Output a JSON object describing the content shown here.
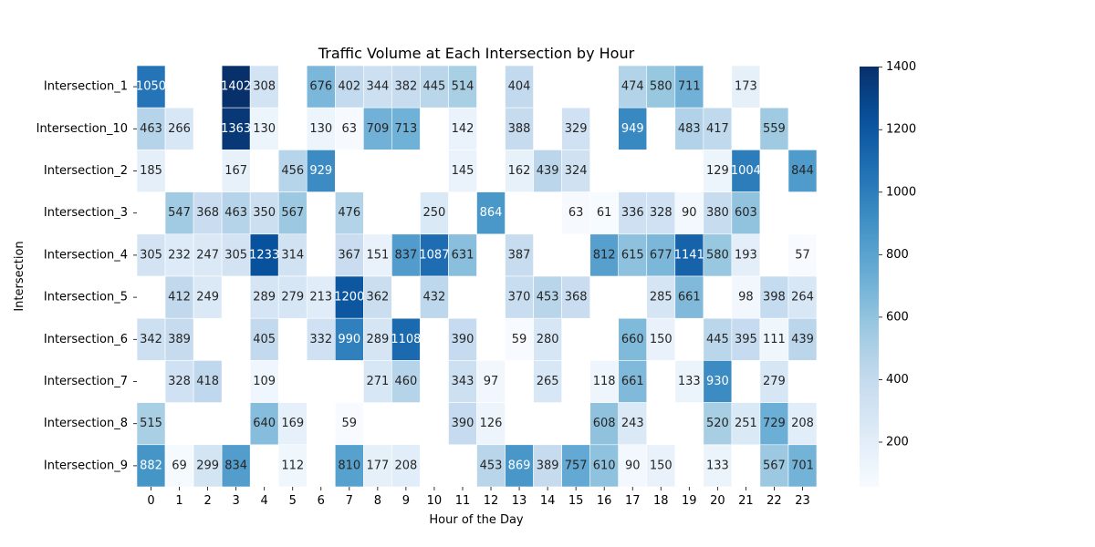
{
  "chart_data": {
    "type": "heatmap",
    "title": "Traffic Volume at Each Intersection by Hour",
    "xlabel": "Hour of the Day",
    "ylabel": "Intersection",
    "x_categories": [
      "0",
      "1",
      "2",
      "3",
      "4",
      "5",
      "6",
      "7",
      "8",
      "9",
      "10",
      "11",
      "12",
      "13",
      "14",
      "15",
      "16",
      "17",
      "18",
      "19",
      "20",
      "21",
      "22",
      "23"
    ],
    "y_categories": [
      "Intersection_1",
      "Intersection_10",
      "Intersection_2",
      "Intersection_3",
      "Intersection_4",
      "Intersection_5",
      "Intersection_6",
      "Intersection_7",
      "Intersection_8",
      "Intersection_9"
    ],
    "values": [
      [
        1050,
        null,
        null,
        1402,
        308,
        null,
        676,
        402,
        344,
        382,
        445,
        514,
        null,
        404,
        null,
        null,
        null,
        474,
        580,
        711,
        null,
        173,
        null,
        null
      ],
      [
        463,
        266,
        null,
        1363,
        130,
        null,
        130,
        63,
        709,
        713,
        null,
        142,
        null,
        388,
        null,
        329,
        null,
        949,
        null,
        483,
        417,
        null,
        559,
        null
      ],
      [
        185,
        null,
        null,
        167,
        null,
        456,
        929,
        null,
        null,
        null,
        null,
        145,
        null,
        162,
        439,
        324,
        null,
        null,
        null,
        null,
        129,
        1004,
        null,
        844
      ],
      [
        null,
        547,
        368,
        463,
        350,
        567,
        null,
        476,
        null,
        null,
        250,
        null,
        864,
        null,
        null,
        63,
        61,
        336,
        328,
        90,
        380,
        603,
        null,
        null
      ],
      [
        305,
        232,
        247,
        305,
        1233,
        314,
        null,
        367,
        151,
        837,
        1087,
        631,
        null,
        387,
        null,
        null,
        812,
        615,
        677,
        1141,
        580,
        193,
        null,
        57
      ],
      [
        null,
        412,
        249,
        null,
        289,
        279,
        213,
        1200,
        362,
        null,
        432,
        null,
        null,
        370,
        453,
        368,
        null,
        null,
        285,
        661,
        null,
        98,
        398,
        264
      ],
      [
        342,
        389,
        null,
        null,
        405,
        null,
        332,
        990,
        289,
        1108,
        null,
        390,
        null,
        59,
        280,
        null,
        null,
        660,
        150,
        null,
        445,
        395,
        111,
        439
      ],
      [
        null,
        328,
        418,
        null,
        109,
        null,
        null,
        null,
        271,
        460,
        null,
        343,
        97,
        null,
        265,
        null,
        118,
        661,
        null,
        133,
        930,
        null,
        279,
        null
      ],
      [
        515,
        null,
        null,
        null,
        640,
        169,
        null,
        59,
        null,
        null,
        null,
        390,
        126,
        null,
        null,
        null,
        608,
        243,
        null,
        null,
        520,
        251,
        729,
        208
      ],
      [
        882,
        69,
        299,
        834,
        null,
        112,
        null,
        810,
        177,
        208,
        null,
        null,
        453,
        869,
        389,
        757,
        610,
        90,
        150,
        null,
        133,
        null,
        567,
        701
      ]
    ],
    "colormap": "Blues",
    "vmin": 57,
    "vmax": 1402,
    "colorbar_ticks": [
      200,
      400,
      600,
      800,
      1000,
      1200,
      1400
    ],
    "colorbar_tick_labels": [
      "200",
      "400",
      "600",
      "800",
      "1000",
      "1200",
      "1400"
    ],
    "legend": "colorbar-right",
    "grid": false
  }
}
